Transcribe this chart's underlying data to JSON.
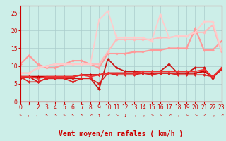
{
  "bg_color": "#cceee8",
  "grid_color": "#aacccc",
  "xlabel": "Vent moyen/en rafales ( km/h )",
  "xlim": [
    0,
    23
  ],
  "ylim": [
    0,
    27
  ],
  "yticks": [
    0,
    5,
    10,
    15,
    20,
    25
  ],
  "xticks": [
    0,
    1,
    2,
    3,
    4,
    5,
    6,
    7,
    8,
    9,
    10,
    11,
    12,
    13,
    14,
    15,
    16,
    17,
    18,
    19,
    20,
    21,
    22,
    23
  ],
  "series": [
    {
      "comment": "darkest red - mean wind, nearly flat ~7",
      "x": [
        0,
        1,
        2,
        3,
        4,
        5,
        6,
        7,
        8,
        9,
        10,
        11,
        12,
        13,
        14,
        15,
        16,
        17,
        18,
        19,
        20,
        21,
        22,
        23
      ],
      "y": [
        7.0,
        7.0,
        7.0,
        7.0,
        7.0,
        7.0,
        7.0,
        7.5,
        7.5,
        7.5,
        8.0,
        8.0,
        8.0,
        8.0,
        8.0,
        8.0,
        8.0,
        8.0,
        8.0,
        8.0,
        8.0,
        8.5,
        7.0,
        9.0
      ],
      "color": "#cc0000",
      "lw": 1.5,
      "marker": "D",
      "ms": 2
    },
    {
      "comment": "dark red - dips down around x=9 to ~3.5, spike at x=10 ~12",
      "x": [
        0,
        1,
        2,
        3,
        4,
        5,
        6,
        7,
        8,
        9,
        10,
        11,
        12,
        13,
        14,
        15,
        16,
        17,
        18,
        19,
        20,
        21,
        22,
        23
      ],
      "y": [
        6.5,
        7.0,
        5.5,
        6.5,
        6.5,
        6.5,
        6.5,
        6.5,
        6.5,
        3.5,
        12.0,
        9.5,
        8.5,
        8.5,
        8.5,
        8.5,
        8.5,
        10.5,
        8.0,
        8.0,
        9.5,
        9.5,
        6.5,
        9.5
      ],
      "color": "#cc1111",
      "lw": 1.2,
      "marker": "D",
      "ms": 2
    },
    {
      "comment": "medium dark red - dips around x=9, x=10 spike ~12",
      "x": [
        0,
        1,
        2,
        3,
        4,
        5,
        6,
        7,
        8,
        9,
        10,
        11,
        12,
        13,
        14,
        15,
        16,
        17,
        18,
        19,
        20,
        21,
        22,
        23
      ],
      "y": [
        7.0,
        5.5,
        5.5,
        6.5,
        6.5,
        6.5,
        5.5,
        6.5,
        6.5,
        5.0,
        8.0,
        7.5,
        7.5,
        7.5,
        8.0,
        7.5,
        8.0,
        8.0,
        7.5,
        7.5,
        7.5,
        7.5,
        7.0,
        9.0
      ],
      "color": "#dd2222",
      "lw": 1.2,
      "marker": "D",
      "ms": 2
    },
    {
      "comment": "medium red - flat around 7-8",
      "x": [
        0,
        1,
        2,
        3,
        4,
        5,
        6,
        7,
        8,
        9,
        10,
        11,
        12,
        13,
        14,
        15,
        16,
        17,
        18,
        19,
        20,
        21,
        22,
        23
      ],
      "y": [
        7.0,
        7.0,
        6.5,
        7.0,
        7.0,
        7.0,
        7.0,
        7.5,
        7.0,
        7.5,
        8.0,
        8.0,
        8.0,
        8.0,
        8.5,
        8.5,
        8.5,
        8.5,
        8.5,
        8.5,
        8.5,
        9.0,
        7.0,
        9.5
      ],
      "color": "#ee3333",
      "lw": 1.2,
      "marker": "D",
      "ms": 2
    },
    {
      "comment": "light pink - rafales linear rise from 10 to 22, peak at x=20",
      "x": [
        0,
        1,
        2,
        3,
        4,
        5,
        6,
        7,
        8,
        9,
        10,
        11,
        12,
        13,
        14,
        15,
        16,
        17,
        18,
        19,
        20,
        21,
        22,
        23
      ],
      "y": [
        10.5,
        13.0,
        10.5,
        9.5,
        9.5,
        10.5,
        11.5,
        11.5,
        10.5,
        9.5,
        13.5,
        13.5,
        13.5,
        14.0,
        14.0,
        14.5,
        14.5,
        15.0,
        15.0,
        15.0,
        20.5,
        14.5,
        14.5,
        17.0
      ],
      "color": "#ff9999",
      "lw": 1.5,
      "marker": "D",
      "ms": 2
    },
    {
      "comment": "lightest pink medium - rises from 8 to ~19, spike at x=9",
      "x": [
        0,
        1,
        2,
        3,
        4,
        5,
        6,
        7,
        8,
        9,
        10,
        11,
        12,
        13,
        14,
        15,
        16,
        17,
        18,
        19,
        20,
        21,
        22,
        23
      ],
      "y": [
        8.0,
        8.0,
        9.5,
        10.0,
        10.5,
        10.5,
        10.5,
        10.5,
        10.5,
        10.5,
        14.0,
        17.5,
        17.5,
        17.5,
        17.5,
        17.5,
        18.0,
        18.0,
        18.5,
        18.5,
        19.5,
        19.5,
        21.5,
        14.0
      ],
      "color": "#ffbbbb",
      "lw": 1.5,
      "marker": "D",
      "ms": 2
    },
    {
      "comment": "lightest pink - biggest spikes, x=9 ~23, x=10 ~25.5, x=16 ~24.5",
      "x": [
        0,
        1,
        2,
        3,
        4,
        5,
        6,
        7,
        8,
        9,
        10,
        11,
        12,
        13,
        14,
        15,
        16,
        17,
        18,
        19,
        20,
        21,
        22,
        23
      ],
      "y": [
        8.0,
        8.0,
        9.5,
        10.0,
        10.5,
        10.5,
        10.5,
        10.5,
        10.5,
        23.0,
        25.5,
        18.0,
        18.0,
        18.0,
        18.0,
        17.0,
        24.5,
        18.0,
        18.5,
        18.5,
        19.5,
        22.5,
        22.5,
        14.5
      ],
      "color": "#ffcccc",
      "lw": 1.3,
      "marker": "D",
      "ms": 2
    }
  ],
  "arrow_symbols": [
    "↖",
    "←",
    "←",
    "↖",
    "↖",
    "↖",
    "↖",
    "↖",
    "↗",
    "↑",
    "↗",
    "↘",
    "↓",
    "→",
    "→",
    "↘",
    "↘",
    "↗",
    "→",
    "↘",
    "↘",
    "↗",
    "→",
    "↗"
  ],
  "axis_label_color": "#cc0000",
  "tick_color": "#cc0000",
  "xlabel_fontsize": 7,
  "tick_fontsize": 5.5
}
